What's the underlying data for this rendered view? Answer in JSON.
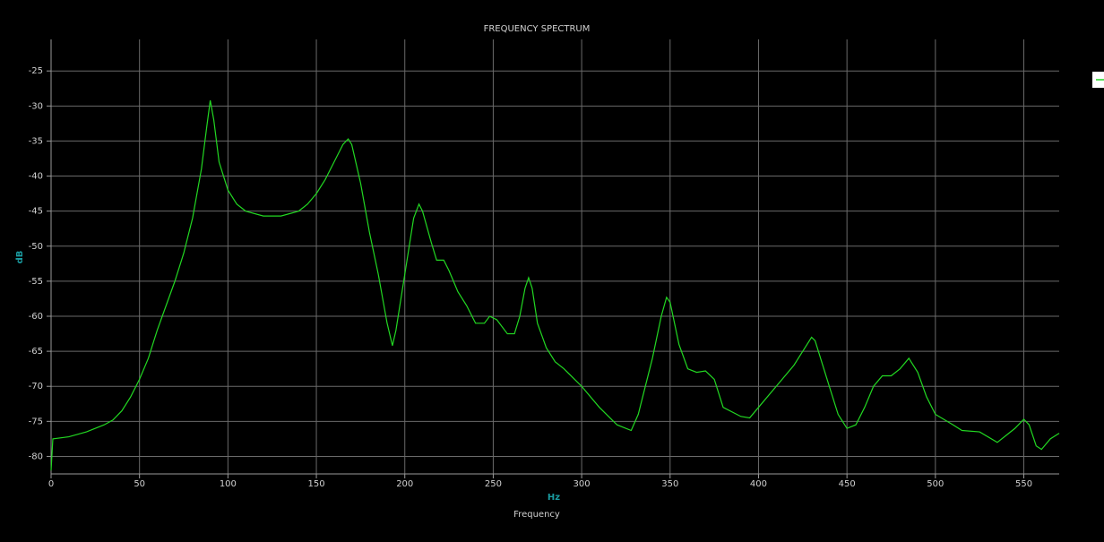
{
  "chart_data": {
    "type": "line",
    "title": "FREQUENCY SPECTRUM",
    "x_label": "Frequency",
    "x_unit": "Hz",
    "y_label": "dB",
    "x": [
      0,
      1,
      10,
      20,
      30,
      35,
      40,
      45,
      50,
      55,
      60,
      65,
      70,
      75,
      80,
      85,
      88,
      90,
      92,
      95,
      100,
      105,
      110,
      120,
      130,
      140,
      145,
      150,
      155,
      160,
      165,
      168,
      170,
      175,
      180,
      185,
      190,
      193,
      195,
      200,
      205,
      208,
      210,
      215,
      218,
      222,
      225,
      230,
      235,
      240,
      245,
      248,
      252,
      258,
      262,
      265,
      268,
      270,
      272,
      275,
      280,
      285,
      290,
      300,
      310,
      320,
      328,
      332,
      340,
      345,
      348,
      350,
      355,
      360,
      365,
      370,
      375,
      380,
      390,
      395,
      400,
      410,
      420,
      430,
      432,
      440,
      445,
      450,
      455,
      460,
      465,
      470,
      475,
      480,
      485,
      490,
      495,
      500,
      510,
      515,
      525,
      535,
      540,
      545,
      550,
      553,
      557,
      560,
      565,
      570
    ],
    "series": [
      {
        "color": "#22d822",
        "values": [
          -82,
          -77.5,
          -77.2,
          -76.5,
          -75.5,
          -74.8,
          -73.5,
          -71.5,
          -69,
          -66,
          -62,
          -58.5,
          -55,
          -51,
          -46,
          -39,
          -33,
          -29.2,
          -32,
          -38,
          -42,
          -44,
          -45,
          -45.7,
          -45.7,
          -45,
          -44,
          -42.5,
          -40.5,
          -38,
          -35.5,
          -34.7,
          -35.5,
          -41,
          -48,
          -54,
          -61,
          -64.2,
          -62,
          -54,
          -46,
          -44,
          -45,
          -49.5,
          -52,
          -52,
          -53.5,
          -56.5,
          -58.5,
          -61,
          -61,
          -60,
          -60.5,
          -62.5,
          -62.5,
          -60,
          -56,
          -54.5,
          -56,
          -61,
          -64.5,
          -66.5,
          -67.5,
          -70,
          -73,
          -75.5,
          -76.3,
          -74,
          -66,
          -60,
          -57.3,
          -58,
          -64,
          -67.5,
          -68,
          -67.8,
          -69,
          -73,
          -74.3,
          -74.5,
          -73,
          -70,
          -67,
          -63,
          -63.5,
          -70,
          -74,
          -76,
          -75.5,
          -73,
          -70,
          -68.5,
          -68.5,
          -67.5,
          -66,
          -68,
          -71.5,
          -74,
          -75.5,
          -76.3,
          -76.5,
          -78,
          -77,
          -76,
          -74.7,
          -75.5,
          -78.5,
          -79,
          -77.5,
          -76.7
        ]
      }
    ],
    "xlim": [
      0,
      570
    ],
    "ylim": [
      -82.5,
      -20.5
    ],
    "xticks": [
      0,
      50,
      100,
      150,
      200,
      250,
      300,
      350,
      400,
      450,
      500,
      550
    ],
    "yticks": [
      -80,
      -75,
      -70,
      -65,
      -60,
      -55,
      -50,
      -45,
      -40,
      -35,
      -30,
      -25
    ],
    "grid": true,
    "legend": "right"
  }
}
